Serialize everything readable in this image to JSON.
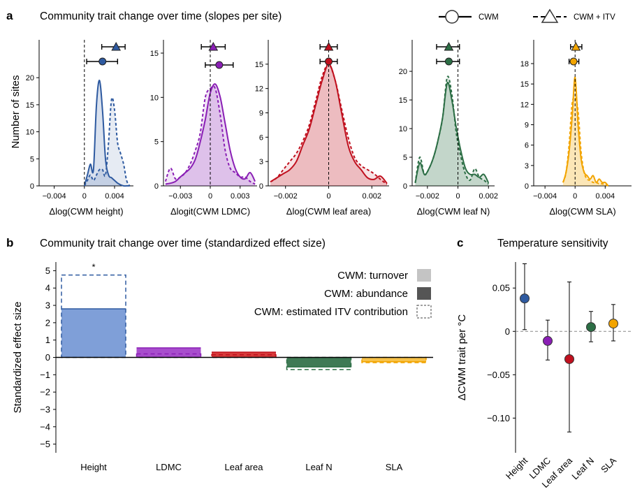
{
  "panels": {
    "a_letter": "a",
    "a_title": "Community trait change over time (slopes per site)",
    "b_letter": "b",
    "b_title": "Community trait change over time (standardized effect size)",
    "c_letter": "c",
    "c_title": "Temperature sensitivity"
  },
  "top_legend": {
    "cwm": "CWM",
    "cwm_itv": "CWM + ITV"
  },
  "colors": {
    "height": "#2e5aa0",
    "ldmc": "#8a1fb5",
    "leaf_area": "#c0101e",
    "leaf_n": "#2c6e45",
    "sla": "#f2a400"
  },
  "chart_data": [
    {
      "type": "area",
      "panel": "a",
      "ylabel": "Number of sites",
      "subplots": [
        {
          "key": "height",
          "xlabel": "Δlog(CWM height)",
          "xlim": [
            -0.006,
            0.0065
          ],
          "ylim": [
            0,
            27
          ],
          "xticks": [
            -0.004,
            0,
            0.004
          ],
          "xtick_labels": [
            "−0.004",
            "0",
            "0.004"
          ],
          "yticks": [
            0,
            5,
            10,
            15,
            20
          ],
          "ytick_labels": [
            "0",
            "5",
            "10",
            "15",
            "20"
          ],
          "x": [
            0,
            0.0004,
            0.0008,
            0.0012,
            0.0016,
            0.002,
            0.0024,
            0.0028,
            0.0032,
            0.0036,
            0.004,
            0.0044,
            0.0048,
            0.0052,
            0.0056,
            0.006
          ],
          "cwm": [
            0,
            2,
            4,
            3,
            15,
            19.5,
            14,
            5,
            2,
            1.5,
            1,
            0.5,
            0.2,
            0,
            0,
            0
          ],
          "cwm_itv": [
            0,
            1,
            2,
            1,
            2,
            3,
            3,
            2,
            8,
            16,
            14,
            8,
            6,
            4,
            1,
            0
          ],
          "cwm_point": 0.0024,
          "cwm_ci": [
            0.0003,
            0.0044
          ],
          "itv_point": 0.0042,
          "itv_ci": [
            0.0023,
            0.0054
          ]
        },
        {
          "key": "ldmc",
          "xlabel": "Δlogit(CWM LDMC)",
          "xlim": [
            -0.0047,
            0.0047
          ],
          "ylim": [
            0,
            16.5
          ],
          "xticks": [
            -0.003,
            0,
            0.003
          ],
          "xtick_labels": [
            "−0.003",
            "0",
            "0.003"
          ],
          "yticks": [
            0,
            5,
            10,
            15
          ],
          "ytick_labels": [
            "0",
            "5",
            "10",
            "15"
          ],
          "x": [
            -0.0045,
            -0.004,
            -0.0035,
            -0.003,
            -0.0025,
            -0.002,
            -0.0015,
            -0.001,
            -0.0005,
            0,
            0.0005,
            0.001,
            0.0015,
            0.002,
            0.0025,
            0.003,
            0.0035,
            0.004,
            0.0045
          ],
          "cwm": [
            0.2,
            0.3,
            0.5,
            1,
            1.5,
            2,
            3,
            5,
            7.5,
            10.5,
            11.5,
            10,
            7,
            4,
            2,
            1,
            0.8,
            1.5,
            0.5
          ],
          "cwm_itv": [
            0.5,
            2,
            0.8,
            1,
            1.5,
            2.5,
            4,
            6,
            10,
            11,
            11,
            8,
            4,
            2,
            1.5,
            1,
            1,
            0.5,
            0.2
          ],
          "cwm_point": 0.0009,
          "cwm_ci": [
            -0.0005,
            0.0023
          ],
          "itv_point": 0.0003,
          "itv_ci": [
            -0.0009,
            0.0015
          ]
        },
        {
          "key": "leaf_area",
          "xlabel": "Δlog(CWM leaf area)",
          "xlim": [
            -0.0028,
            0.0028
          ],
          "ylim": [
            0,
            18
          ],
          "xticks": [
            -0.002,
            0,
            0.002
          ],
          "xtick_labels": [
            "−0.002",
            "0",
            "0.002"
          ],
          "yticks": [
            0,
            3,
            6,
            9,
            12,
            15
          ],
          "ytick_labels": [
            "0",
            "3",
            "6",
            "9",
            "12",
            "15"
          ],
          "x": [
            -0.0027,
            -0.0024,
            -0.0021,
            -0.0018,
            -0.0015,
            -0.0012,
            -0.0009,
            -0.0006,
            -0.0003,
            0,
            0.0003,
            0.0006,
            0.0009,
            0.0012,
            0.0015,
            0.0018,
            0.0021,
            0.0024,
            0.0027
          ],
          "cwm": [
            0.5,
            1,
            1.5,
            2,
            3,
            5,
            7,
            10,
            13,
            15,
            13,
            9,
            5,
            3,
            2,
            1,
            0.8,
            1.2,
            0.3
          ],
          "cwm_itv": [
            0.5,
            1,
            2,
            3,
            4,
            5.5,
            7.5,
            10.5,
            13.5,
            15,
            13,
            9.5,
            6,
            3.5,
            2.5,
            2,
            1.5,
            0.8,
            0.2
          ],
          "cwm_point": 0.0,
          "cwm_ci": [
            -0.0004,
            0.0004
          ],
          "itv_point": 0.0,
          "itv_ci": [
            -0.0004,
            0.0004
          ]
        },
        {
          "key": "leaf_n",
          "xlabel": "Δlog(CWM leaf N)",
          "xlim": [
            -0.003,
            0.0024
          ],
          "ylim": [
            0,
            25.5
          ],
          "xticks": [
            -0.002,
            0,
            0.002
          ],
          "xtick_labels": [
            "−0.002",
            "0",
            "0.002"
          ],
          "yticks": [
            0,
            5,
            10,
            15,
            20
          ],
          "ytick_labels": [
            "0",
            "5",
            "10",
            "15",
            "20"
          ],
          "x": [
            -0.0028,
            -0.0025,
            -0.0022,
            -0.0019,
            -0.0016,
            -0.0013,
            -0.001,
            -0.0007,
            -0.0004,
            -0.0001,
            0.0002,
            0.0005,
            0.0008,
            0.0011,
            0.0014,
            0.0017,
            0.002
          ],
          "cwm": [
            0.5,
            4,
            2,
            3,
            5,
            8,
            12,
            18,
            15,
            10,
            6,
            3,
            2,
            2,
            1.5,
            2,
            0.5
          ],
          "cwm_itv": [
            0.5,
            5,
            2,
            3,
            5,
            8,
            12,
            19,
            16,
            9,
            5,
            2,
            1,
            3,
            1.5,
            1,
            0.3
          ],
          "cwm_point": -0.0006,
          "cwm_ci": [
            -0.0014,
            0.0001
          ],
          "itv_point": -0.0006,
          "itv_ci": [
            -0.0014,
            0.0001
          ]
        },
        {
          "key": "sla",
          "xlabel": "Δlog(CWM SLA)",
          "xlim": [
            -0.0055,
            0.0075
          ],
          "ylim": [
            0,
            21.5
          ],
          "xticks": [
            -0.004,
            0,
            0.004
          ],
          "xtick_labels": [
            "−0.004",
            "0",
            "0.004"
          ],
          "yticks": [
            0,
            3,
            6,
            9,
            12,
            15,
            18
          ],
          "ytick_labels": [
            "0",
            "3",
            "6",
            "9",
            "12",
            "15",
            "18"
          ],
          "x": [
            -0.0016,
            -0.0012,
            -0.0008,
            -0.0004,
            0,
            0.0004,
            0.0008,
            0.0012,
            0.0016,
            0.002,
            0.0024,
            0.0028,
            0.0032,
            0.0036,
            0.004,
            0.0044
          ],
          "cwm": [
            0.5,
            2,
            5,
            10,
            16,
            9,
            4,
            2,
            1.5,
            1,
            1.5,
            0.5,
            1,
            0.5,
            0.5,
            0
          ],
          "cwm_itv": [
            0.5,
            2,
            6,
            12,
            13,
            11,
            5,
            2,
            1,
            0.8,
            0.5,
            0.5,
            0.3,
            0.3,
            0.2,
            0
          ],
          "cwm_point": -0.0002,
          "cwm_ci": [
            -0.0008,
            0.0005
          ],
          "itv_point": 0.0001,
          "itv_ci": [
            -0.0006,
            0.0009
          ]
        }
      ]
    },
    {
      "type": "bar",
      "panel": "b",
      "ylabel": "Standardized effect size",
      "ylim": [
        -5.5,
        5.5
      ],
      "yticks": [
        -5,
        -4,
        -3,
        -2,
        -1,
        0,
        1,
        2,
        3,
        4,
        5
      ],
      "ytick_labels": [
        "−5",
        "−4",
        "−3",
        "−2",
        "−1",
        "0",
        "1",
        "2",
        "3",
        "4",
        "5"
      ],
      "categories": [
        "Height",
        "LDMC",
        "Leaf area",
        "Leaf N",
        "SLA"
      ],
      "cwm_values": [
        2.8,
        0.55,
        0.3,
        -0.55,
        -0.25
      ],
      "cwm_itv_values": [
        4.75,
        0.2,
        0.15,
        -0.7,
        -0.3
      ],
      "significance": [
        "*",
        "",
        "",
        "",
        ""
      ],
      "legend": [
        "CWM: turnover",
        "CWM: abundance",
        "CWM: estimated ITV contribution"
      ]
    },
    {
      "type": "scatter",
      "panel": "c",
      "ylabel": "ΔCWM trait per °C",
      "ylim": [
        -0.14,
        0.08
      ],
      "yticks": [
        -0.1,
        -0.05,
        0,
        0.05
      ],
      "ytick_labels": [
        "−0.10",
        "−0.05",
        "0",
        "0.05"
      ],
      "categories": [
        "Height",
        "LDMC",
        "Leaf area",
        "Leaf N",
        "SLA"
      ],
      "values": [
        0.038,
        -0.011,
        -0.032,
        0.005,
        0.009
      ],
      "ci_low": [
        0.002,
        -0.033,
        -0.116,
        -0.012,
        -0.011
      ],
      "ci_high": [
        0.078,
        0.013,
        0.057,
        0.023,
        0.031
      ]
    }
  ]
}
